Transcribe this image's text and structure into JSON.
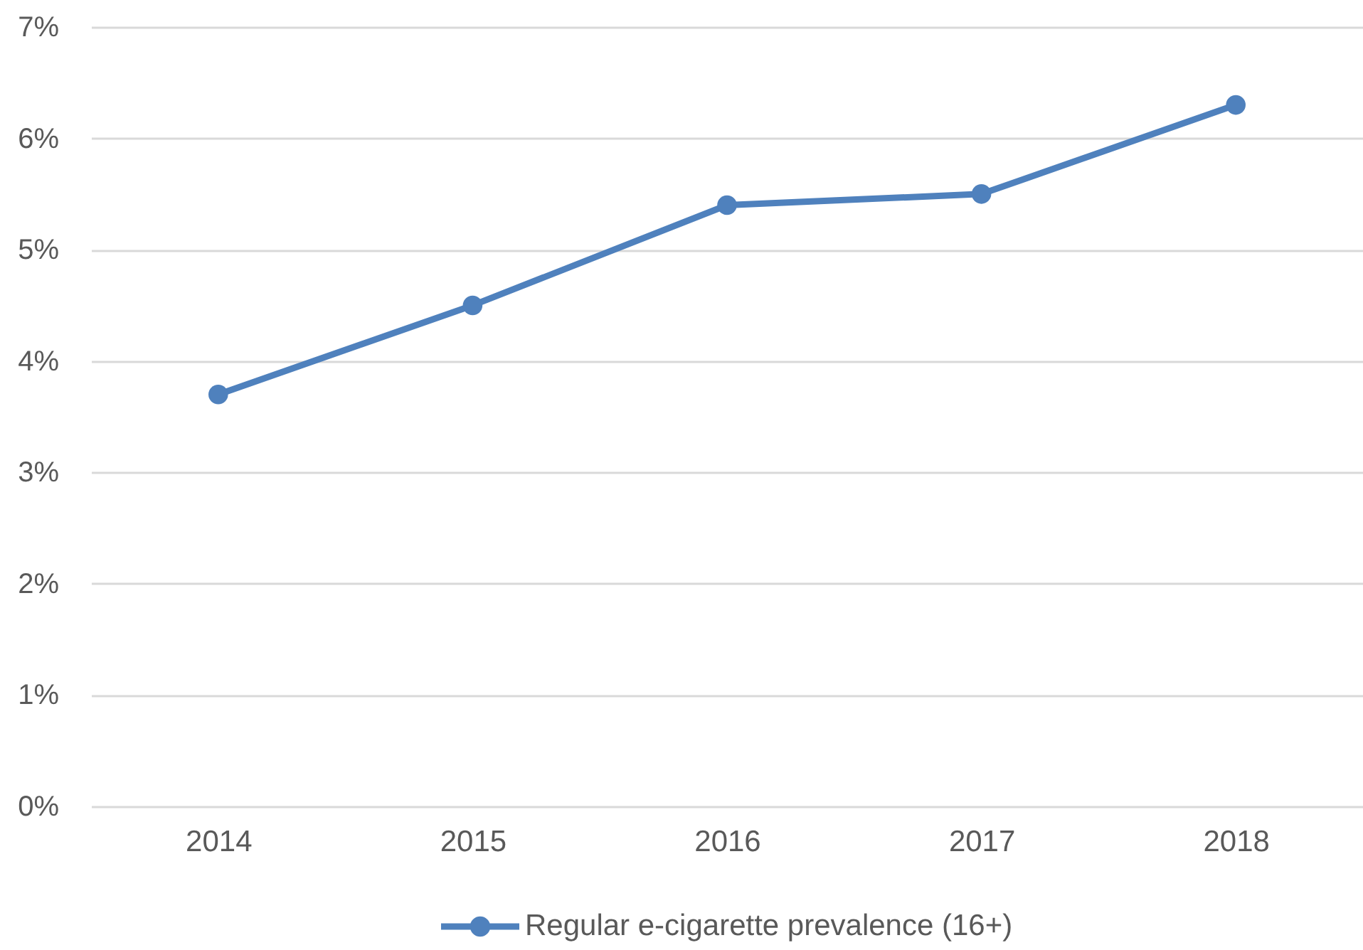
{
  "chart_data": {
    "type": "line",
    "categories": [
      "2014",
      "2015",
      "2016",
      "2017",
      "2018"
    ],
    "series": [
      {
        "name": "Regular e-cigarette prevalence (16+)",
        "color": "#4f81bd",
        "values": [
          3.7,
          4.5,
          5.4,
          5.5,
          6.3
        ]
      }
    ],
    "ylim": [
      0,
      7
    ],
    "yticks": [
      {
        "value": 0,
        "label": "0%"
      },
      {
        "value": 1,
        "label": "1%"
      },
      {
        "value": 2,
        "label": "2%"
      },
      {
        "value": 3,
        "label": "3%"
      },
      {
        "value": 4,
        "label": "4%"
      },
      {
        "value": 5,
        "label": "5%"
      },
      {
        "value": 6,
        "label": "6%"
      },
      {
        "value": 7,
        "label": "7%"
      }
    ],
    "grid": "y",
    "legend": "bottom",
    "marker": "circle",
    "line_style": "solid"
  }
}
